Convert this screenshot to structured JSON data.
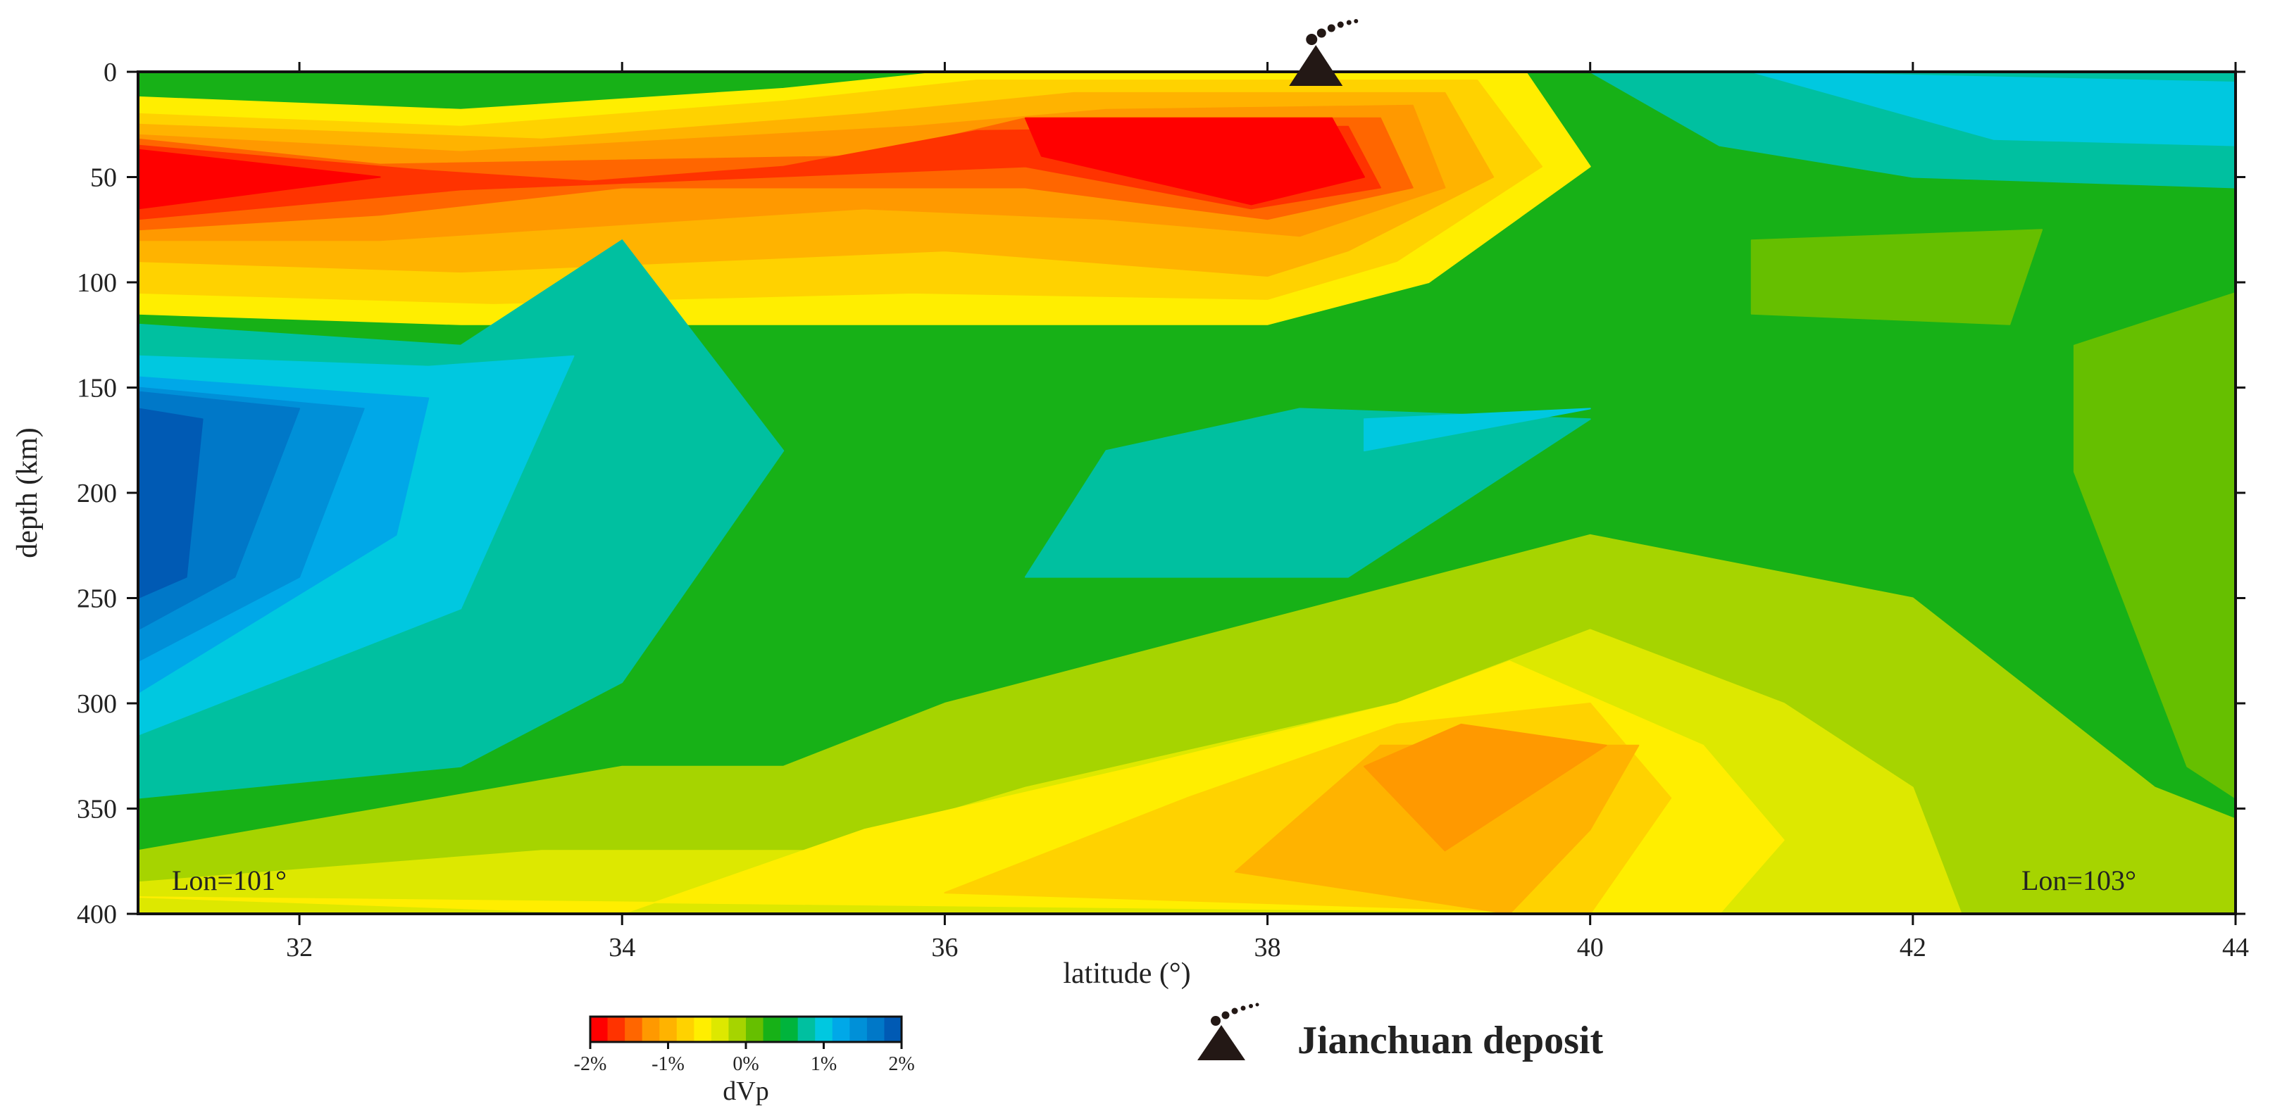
{
  "chart_data": {
    "type": "heatmap",
    "xlabel": "latitude (°)",
    "ylabel": "depth (km)",
    "xlim": [
      31,
      44
    ],
    "ylim": [
      400,
      0
    ],
    "x_ticks": [
      32,
      34,
      36,
      38,
      40,
      42,
      44
    ],
    "y_ticks": [
      0,
      50,
      100,
      150,
      200,
      250,
      300,
      350,
      400
    ],
    "x_tick_labels": [
      "32",
      "34",
      "36",
      "38",
      "40",
      "42",
      "44"
    ],
    "y_tick_labels": [
      "0",
      "50",
      "100",
      "150",
      "200",
      "250",
      "300",
      "350",
      "400"
    ],
    "annotations": {
      "left": "Lon=101°",
      "right": "Lon=103°"
    },
    "colorbar": {
      "title": "dVp",
      "range": [
        -2,
        2
      ],
      "tick_labels": [
        "-2%",
        "-1%",
        "0%",
        "1%",
        "2%"
      ],
      "colors": [
        "#ff0000",
        "#ff3300",
        "#ff6600",
        "#ff9900",
        "#ffb300",
        "#ffd200",
        "#ffee00",
        "#dde800",
        "#a6d400",
        "#66bf00",
        "#17b117",
        "#00b43c",
        "#00c0a0",
        "#00c8e0",
        "#00a8e8",
        "#0090d8",
        "#0078c8",
        "#005ab4"
      ]
    },
    "volcano_marker": {
      "latitude": 38.3,
      "depth": 0
    },
    "legend": {
      "label": "Jianchuan deposit"
    },
    "regions": [
      {
        "level": 6,
        "points": [
          [
            31,
            12
          ],
          [
            33,
            18
          ],
          [
            35,
            8
          ],
          [
            36,
            0
          ],
          [
            39.6,
            0
          ],
          [
            40,
            45
          ],
          [
            39,
            100
          ],
          [
            38,
            120
          ],
          [
            35.5,
            120
          ],
          [
            33,
            120
          ],
          [
            31,
            115
          ]
        ]
      },
      {
        "level": 5,
        "points": [
          [
            31,
            20
          ],
          [
            33,
            26
          ],
          [
            35,
            14
          ],
          [
            36.2,
            4
          ],
          [
            39.3,
            4
          ],
          [
            39.7,
            45
          ],
          [
            38.8,
            90
          ],
          [
            38,
            108
          ],
          [
            35.8,
            105
          ],
          [
            33.2,
            110
          ],
          [
            31,
            105
          ]
        ]
      },
      {
        "level": 4,
        "points": [
          [
            31,
            25
          ],
          [
            33.5,
            32
          ],
          [
            35.5,
            20
          ],
          [
            36.8,
            10
          ],
          [
            39.1,
            10
          ],
          [
            39.4,
            50
          ],
          [
            38.5,
            85
          ],
          [
            38,
            97
          ],
          [
            36,
            85
          ],
          [
            33,
            95
          ],
          [
            31,
            90
          ]
        ]
      },
      {
        "level": 3,
        "points": [
          [
            31,
            30
          ],
          [
            33,
            38
          ],
          [
            35.8,
            26
          ],
          [
            37,
            18
          ],
          [
            38.9,
            16
          ],
          [
            39.1,
            55
          ],
          [
            38.2,
            78
          ],
          [
            37,
            70
          ],
          [
            35.5,
            65
          ],
          [
            32.5,
            80
          ],
          [
            31,
            80
          ]
        ]
      },
      {
        "level": 2,
        "points": [
          [
            31,
            32
          ],
          [
            32.5,
            44
          ],
          [
            35.5,
            40
          ],
          [
            36.5,
            22
          ],
          [
            38.7,
            22
          ],
          [
            38.9,
            55
          ],
          [
            38,
            70
          ],
          [
            36.5,
            55
          ],
          [
            34,
            55
          ],
          [
            32.5,
            68
          ],
          [
            31,
            75
          ]
        ]
      },
      {
        "level": 1,
        "points": [
          [
            31,
            35
          ],
          [
            32.8,
            47
          ],
          [
            33.8,
            52
          ],
          [
            35,
            45
          ],
          [
            36.2,
            28
          ],
          [
            38.5,
            26
          ],
          [
            38.7,
            55
          ],
          [
            37.9,
            65
          ],
          [
            36.5,
            45
          ],
          [
            33,
            56
          ],
          [
            31,
            70
          ]
        ]
      },
      {
        "level": 0,
        "points": [
          [
            31,
            37
          ],
          [
            32.5,
            50
          ],
          [
            31,
            65
          ]
        ]
      },
      {
        "level": 0,
        "points": [
          [
            36.5,
            22
          ],
          [
            38.4,
            22
          ],
          [
            38.6,
            50
          ],
          [
            37.9,
            63
          ],
          [
            36.6,
            40
          ]
        ]
      },
      {
        "level": 12,
        "points": [
          [
            31,
            120
          ],
          [
            33,
            130
          ],
          [
            34,
            80
          ],
          [
            35,
            180
          ],
          [
            34,
            290
          ],
          [
            33,
            330
          ],
          [
            31,
            345
          ]
        ]
      },
      {
        "level": 12,
        "points": [
          [
            40,
            0
          ],
          [
            44,
            0
          ],
          [
            44,
            55
          ],
          [
            42,
            50
          ],
          [
            40.8,
            35
          ]
        ]
      },
      {
        "level": 12,
        "points": [
          [
            36.5,
            240
          ],
          [
            37,
            180
          ],
          [
            38.2,
            160
          ],
          [
            40,
            165
          ],
          [
            38.5,
            240
          ]
        ]
      },
      {
        "level": 13,
        "points": [
          [
            31,
            135
          ],
          [
            32.8,
            140
          ],
          [
            33.7,
            135
          ],
          [
            33,
            255
          ],
          [
            31,
            315
          ]
        ]
      },
      {
        "level": 13,
        "points": [
          [
            38.6,
            165
          ],
          [
            40,
            160
          ],
          [
            38.6,
            180
          ]
        ]
      },
      {
        "level": 13,
        "points": [
          [
            41,
            0
          ],
          [
            44,
            5
          ],
          [
            44,
            35
          ],
          [
            42.5,
            32
          ]
        ]
      },
      {
        "level": 14,
        "points": [
          [
            31,
            145
          ],
          [
            32.8,
            155
          ],
          [
            32.6,
            220
          ],
          [
            31,
            295
          ]
        ]
      },
      {
        "level": 15,
        "points": [
          [
            31,
            150
          ],
          [
            32.4,
            160
          ],
          [
            32,
            240
          ],
          [
            31,
            280
          ]
        ]
      },
      {
        "level": 16,
        "points": [
          [
            31,
            152
          ],
          [
            32,
            160
          ],
          [
            31.6,
            240
          ],
          [
            31,
            265
          ]
        ]
      },
      {
        "level": 17,
        "points": [
          [
            31,
            160
          ],
          [
            31.4,
            165
          ],
          [
            31.3,
            240
          ],
          [
            31,
            250
          ]
        ]
      },
      {
        "level": 8,
        "points": [
          [
            31,
            370
          ],
          [
            34,
            330
          ],
          [
            35,
            330
          ],
          [
            36,
            300
          ],
          [
            40,
            220
          ],
          [
            42,
            250
          ],
          [
            43.5,
            340
          ],
          [
            44,
            355
          ],
          [
            44,
            400
          ],
          [
            31,
            400
          ]
        ]
      },
      {
        "level": 7,
        "points": [
          [
            31,
            385
          ],
          [
            33.5,
            370
          ],
          [
            35.2,
            370
          ],
          [
            36.5,
            340
          ],
          [
            38.8,
            300
          ],
          [
            40,
            265
          ],
          [
            41.2,
            300
          ],
          [
            42,
            340
          ],
          [
            42.3,
            400
          ],
          [
            31,
            400
          ]
        ]
      },
      {
        "level": 6,
        "points": [
          [
            31,
            392
          ],
          [
            34,
            400
          ],
          [
            35.5,
            360
          ],
          [
            37.2,
            330
          ],
          [
            38.8,
            300
          ],
          [
            39.5,
            280
          ],
          [
            40.7,
            320
          ],
          [
            41.2,
            365
          ],
          [
            40.8,
            400
          ]
        ]
      },
      {
        "level": 5,
        "points": [
          [
            36,
            390
          ],
          [
            37.5,
            345
          ],
          [
            38.8,
            310
          ],
          [
            40,
            300
          ],
          [
            40.5,
            345
          ],
          [
            40,
            400
          ]
        ]
      },
      {
        "level": 4,
        "points": [
          [
            37.8,
            380
          ],
          [
            38.7,
            320
          ],
          [
            40.3,
            320
          ],
          [
            40,
            360
          ],
          [
            39.5,
            400
          ]
        ]
      },
      {
        "level": 3,
        "points": [
          [
            38.6,
            330
          ],
          [
            39.2,
            310
          ],
          [
            40.1,
            320
          ],
          [
            39.1,
            370
          ]
        ]
      },
      {
        "level": 8,
        "points": [
          [
            43.2,
            380
          ],
          [
            44,
            360
          ],
          [
            44,
            400
          ],
          [
            43.2,
            400
          ]
        ]
      },
      {
        "level": 9,
        "points": [
          [
            41,
            80
          ],
          [
            42.8,
            75
          ],
          [
            42.6,
            120
          ],
          [
            41,
            115
          ]
        ]
      },
      {
        "level": 9,
        "points": [
          [
            43,
            130
          ],
          [
            44,
            105
          ],
          [
            44,
            345
          ],
          [
            43.7,
            330
          ],
          [
            43.2,
            230
          ],
          [
            43,
            190
          ]
        ]
      }
    ]
  }
}
